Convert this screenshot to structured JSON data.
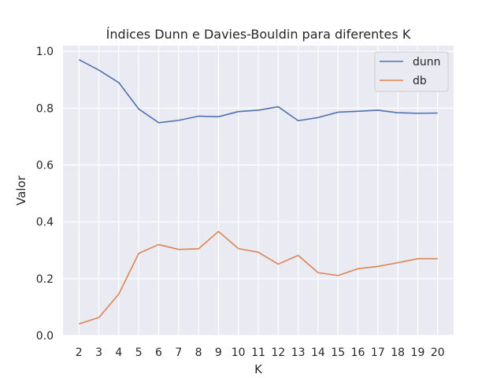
{
  "chart_data": {
    "type": "line",
    "title": "Índices Dunn e Davies-Bouldin para diferentes K",
    "xlabel": "K",
    "ylabel": "Valor",
    "x": [
      2,
      3,
      4,
      5,
      6,
      7,
      8,
      9,
      10,
      11,
      12,
      13,
      14,
      15,
      16,
      17,
      18,
      19,
      20
    ],
    "x_ticks": [
      "2",
      "3",
      "4",
      "5",
      "6",
      "7",
      "8",
      "9",
      "10",
      "11",
      "12",
      "13",
      "14",
      "15",
      "16",
      "17",
      "18",
      "19",
      "20"
    ],
    "y_ticks": [
      "0.0",
      "0.2",
      "0.4",
      "0.6",
      "0.8",
      "1.0"
    ],
    "ylim": [
      0.0,
      1.02
    ],
    "xlim": [
      1.2,
      20.8
    ],
    "grid": true,
    "legend_position": "top-right",
    "series": [
      {
        "name": "dunn",
        "color": "#4c72b0",
        "values": [
          0.971,
          0.934,
          0.89,
          0.797,
          0.749,
          0.757,
          0.772,
          0.77,
          0.788,
          0.793,
          0.805,
          0.756,
          0.767,
          0.786,
          0.789,
          0.793,
          0.784,
          0.782,
          0.783
        ]
      },
      {
        "name": "db",
        "color": "#dd8452",
        "values": [
          0.041,
          0.063,
          0.146,
          0.289,
          0.32,
          0.303,
          0.305,
          0.366,
          0.306,
          0.293,
          0.251,
          0.282,
          0.221,
          0.211,
          0.235,
          0.243,
          0.256,
          0.27,
          0.27
        ]
      }
    ]
  }
}
